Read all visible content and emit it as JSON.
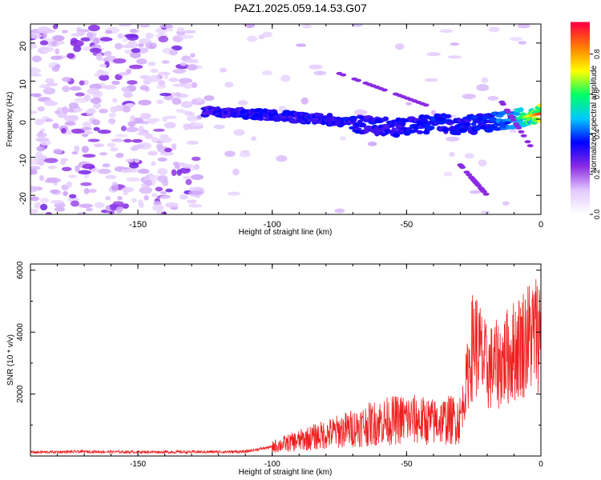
{
  "title": "PAZ1.2025.059.14.53.G07",
  "chart_data": [
    {
      "type": "heatmap",
      "xlabel": "Height of straight line (km)",
      "ylabel": "Frequency (Hz)",
      "xlim": [
        -190,
        0
      ],
      "ylim": [
        -25,
        25
      ],
      "xticks": [
        -150,
        -100,
        -50,
        0
      ],
      "yticks": [
        -20,
        -10,
        0,
        10,
        20
      ],
      "colorbar": {
        "label": "Normalized spectral amplitude",
        "range": [
          0,
          0.95
        ],
        "ticks": [
          "0.0",
          "0.2",
          "0.4",
          "0.6",
          "0.8"
        ],
        "colormap": [
          "#ffffff",
          "#e2c8ff",
          "#8a2be2",
          "#0000ff",
          "#00c8ff",
          "#00ff66",
          "#ffff00",
          "#ff7f00",
          "#ff0040"
        ]
      },
      "ridge": {
        "x": [
          -125,
          -110,
          -100,
          -90,
          -80,
          -70,
          -60,
          -50,
          -40,
          -30,
          -20,
          -10,
          0
        ],
        "frequency": [
          2,
          1.5,
          1,
          0.5,
          0,
          -1,
          -2,
          -2,
          -1,
          -1.5,
          -1,
          0,
          1.5
        ],
        "amplitude": [
          0.25,
          0.3,
          0.32,
          0.3,
          0.3,
          0.32,
          0.3,
          0.3,
          0.35,
          0.32,
          0.35,
          0.5,
          0.95
        ]
      },
      "grid": false
    },
    {
      "type": "line",
      "xlabel": "Height of straight line (km)",
      "ylabel": "SNR (10 * v/v)",
      "xlim": [
        -190,
        0
      ],
      "ylim": [
        0,
        6200
      ],
      "xticks": [
        -150,
        -100,
        -50,
        0
      ],
      "yticks": [
        2000,
        4000,
        6000
      ],
      "color": "#ee2020",
      "series": [
        {
          "x": [
            -190,
            -170,
            -150,
            -130,
            -110,
            -100,
            -90,
            -80,
            -70,
            -60,
            -50,
            -40,
            -30,
            -25,
            -20,
            -15,
            -10,
            -5,
            0
          ],
          "values": [
            120,
            140,
            130,
            130,
            140,
            300,
            500,
            700,
            900,
            1100,
            1200,
            1100,
            1200,
            3800,
            2800,
            3000,
            3400,
            3800,
            4100
          ]
        }
      ],
      "grid": false
    }
  ]
}
